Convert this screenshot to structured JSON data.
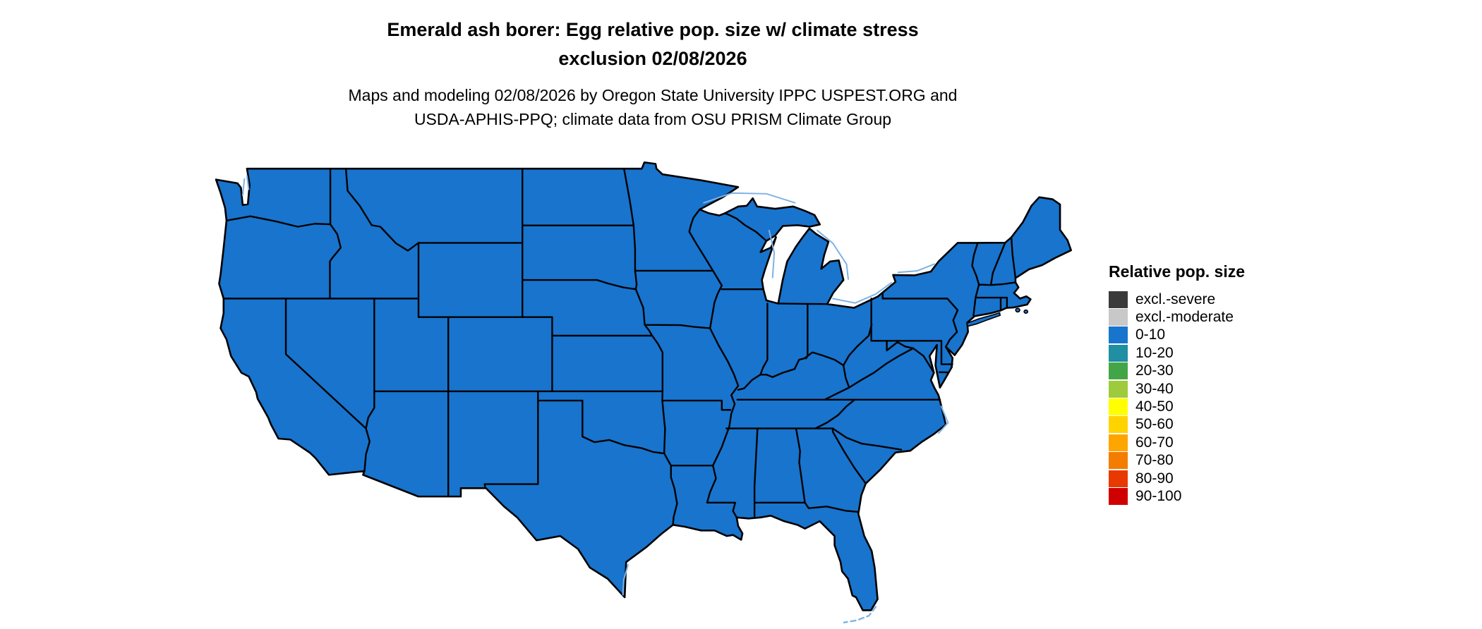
{
  "title": {
    "line1": "Emerald ash borer: Egg relative pop. size w/ climate stress",
    "line2": "exclusion 02/08/2026"
  },
  "subtitle": {
    "line1": "Maps and modeling 02/08/2026 by Oregon State University IPPC USPEST.ORG and",
    "line2": "USDA-APHIS-PPQ; climate data from OSU PRISM Climate Group"
  },
  "legend": {
    "title": "Relative pop. size",
    "items": [
      {
        "label": "excl.-severe",
        "color": "#3A3A3A"
      },
      {
        "label": "excl.-moderate",
        "color": "#C8C8C8"
      },
      {
        "label": "0-10",
        "color": "#1874CD"
      },
      {
        "label": "10-20",
        "color": "#208EA3"
      },
      {
        "label": "20-30",
        "color": "#44A548"
      },
      {
        "label": "30-40",
        "color": "#9ECB3B"
      },
      {
        "label": "40-50",
        "color": "#FFFF00"
      },
      {
        "label": "50-60",
        "color": "#FFD300"
      },
      {
        "label": "60-70",
        "color": "#FFA500"
      },
      {
        "label": "70-80",
        "color": "#F47C00"
      },
      {
        "label": "80-90",
        "color": "#E83A00"
      },
      {
        "label": "90-100",
        "color": "#D00000"
      }
    ]
  },
  "map": {
    "region": "Contiguous United States choropleth",
    "fill_color": "#1874CD",
    "state_border_color": "#000000",
    "water_boundary_color": "#7FB2E5",
    "background_color": "#FFFFFF",
    "uniform_value": "0-10"
  }
}
